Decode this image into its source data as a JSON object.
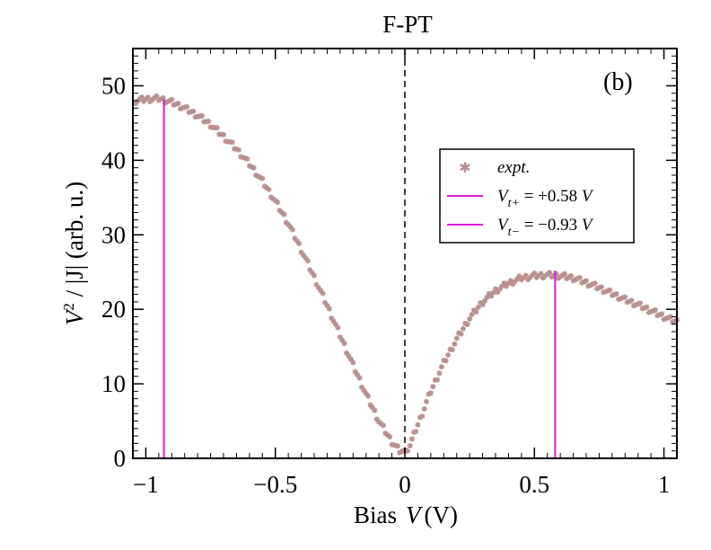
{
  "chart_data": {
    "type": "scatter",
    "title": "F-PT",
    "panel_label": "(b)",
    "xlabel_prefix": "Bias",
    "xlabel_var": "V",
    "xlabel_unit": "(V)",
    "ylabel_V": "V",
    "ylabel_exp": "2",
    "ylabel_rest": " / |J| (arb. u.)",
    "xlim": [
      -1.05,
      1.05
    ],
    "ylim": [
      0,
      55
    ],
    "xticks": [
      -1,
      -0.5,
      0,
      0.5,
      1
    ],
    "xtick_labels": [
      "−1",
      "−0.5",
      "0",
      "0.5",
      "1"
    ],
    "yticks": [
      0,
      10,
      20,
      30,
      40,
      50
    ],
    "ytick_labels": [
      "0",
      "10",
      "20",
      "30",
      "40",
      "50"
    ],
    "zero_line_x": 0,
    "colors": {
      "points": "#b89090",
      "vlines": "#e01bd8",
      "axes": "#000000"
    },
    "series": [
      {
        "name": "expt.",
        "x": [
          -1.04,
          -1.0,
          -0.95,
          -0.9,
          -0.85,
          -0.8,
          -0.75,
          -0.7,
          -0.65,
          -0.6,
          -0.55,
          -0.5,
          -0.45,
          -0.4,
          -0.35,
          -0.3,
          -0.25,
          -0.2,
          -0.15,
          -0.1,
          -0.05,
          -0.02,
          0.0,
          0.02,
          0.05,
          0.1,
          0.15,
          0.2,
          0.25,
          0.3,
          0.35,
          0.4,
          0.45,
          0.5,
          0.55,
          0.6,
          0.65,
          0.7,
          0.75,
          0.8,
          0.85,
          0.9,
          0.95,
          1.0,
          1.05
        ],
        "y": [
          48.0,
          48.2,
          48.3,
          47.8,
          47.0,
          46.0,
          44.8,
          43.2,
          41.5,
          39.5,
          37.2,
          34.5,
          31.5,
          28.0,
          24.3,
          20.5,
          16.5,
          12.5,
          8.6,
          5.0,
          2.2,
          1.0,
          0.9,
          1.8,
          4.5,
          9.0,
          12.8,
          16.0,
          18.8,
          21.0,
          22.5,
          23.5,
          24.2,
          24.5,
          24.6,
          24.5,
          24.2,
          23.6,
          22.9,
          22.1,
          21.3,
          20.6,
          19.8,
          19.0,
          18.3
        ]
      }
    ],
    "vlines": [
      {
        "name": "V_t+",
        "x": 0.58,
        "y_top": 25.2,
        "sub": "t+",
        "value_text": "= +0.58",
        "unit": "V"
      },
      {
        "name": "V_t-",
        "x": -0.93,
        "y_top": 48.2,
        "sub": "t−",
        "value_text": "= −0.93",
        "unit": "V"
      }
    ],
    "legend": {
      "entries": [
        {
          "label": "expt."
        },
        {
          "label_main": "V",
          "label_sub": "t+",
          "label_rest": " = +0.58 ",
          "label_unit": "V"
        },
        {
          "label_main": "V",
          "label_sub": "t−",
          "label_rest": " = −0.93 ",
          "label_unit": "V"
        }
      ]
    }
  }
}
